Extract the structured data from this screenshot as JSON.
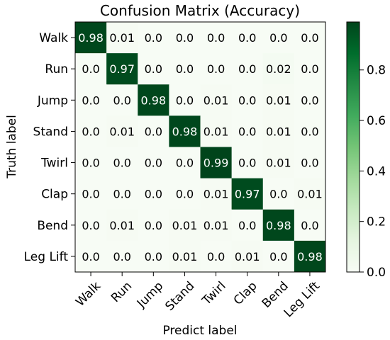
{
  "chart_data": {
    "type": "heatmap",
    "title": "Confusion Matrix (Accuracy)",
    "xlabel": "Predict label",
    "ylabel": "Truth label",
    "row_labels": [
      "Walk",
      "Run",
      "Jump",
      "Stand",
      "Twirl",
      "Clap",
      "Bend",
      "Leg Lift"
    ],
    "col_labels": [
      "Walk",
      "Run",
      "Jump",
      "Stand",
      "Twirl",
      "Clap",
      "Bend",
      "Leg Lift"
    ],
    "cell_labels": [
      [
        "0.98",
        "0.01",
        "0.0",
        "0.0",
        "0.0",
        "0.0",
        "0.0",
        "0.0"
      ],
      [
        "0.0",
        "0.97",
        "0.0",
        "0.0",
        "0.0",
        "0.0",
        "0.02",
        "0.0"
      ],
      [
        "0.0",
        "0.0",
        "0.98",
        "0.0",
        "0.01",
        "0.0",
        "0.01",
        "0.0"
      ],
      [
        "0.0",
        "0.01",
        "0.0",
        "0.98",
        "0.01",
        "0.0",
        "0.01",
        "0.0"
      ],
      [
        "0.0",
        "0.0",
        "0.0",
        "0.0",
        "0.99",
        "0.0",
        "0.01",
        "0.0"
      ],
      [
        "0.0",
        "0.0",
        "0.0",
        "0.0",
        "0.01",
        "0.97",
        "0.0",
        "0.01"
      ],
      [
        "0.0",
        "0.01",
        "0.0",
        "0.01",
        "0.01",
        "0.0",
        "0.98",
        "0.0"
      ],
      [
        "0.0",
        "0.0",
        "0.0",
        "0.01",
        "0.0",
        "0.01",
        "0.0",
        "0.98"
      ]
    ],
    "colorbar": {
      "range": [
        0,
        0.99
      ],
      "ticks": [
        "0.0",
        "0.2",
        "0.4",
        "0.6",
        "0.8"
      ],
      "tick_values": [
        0,
        0.2,
        0.4,
        0.6,
        0.8
      ],
      "colormap": "Greens",
      "low_color": "#f7fcf5",
      "high_color": "#00441b"
    }
  }
}
